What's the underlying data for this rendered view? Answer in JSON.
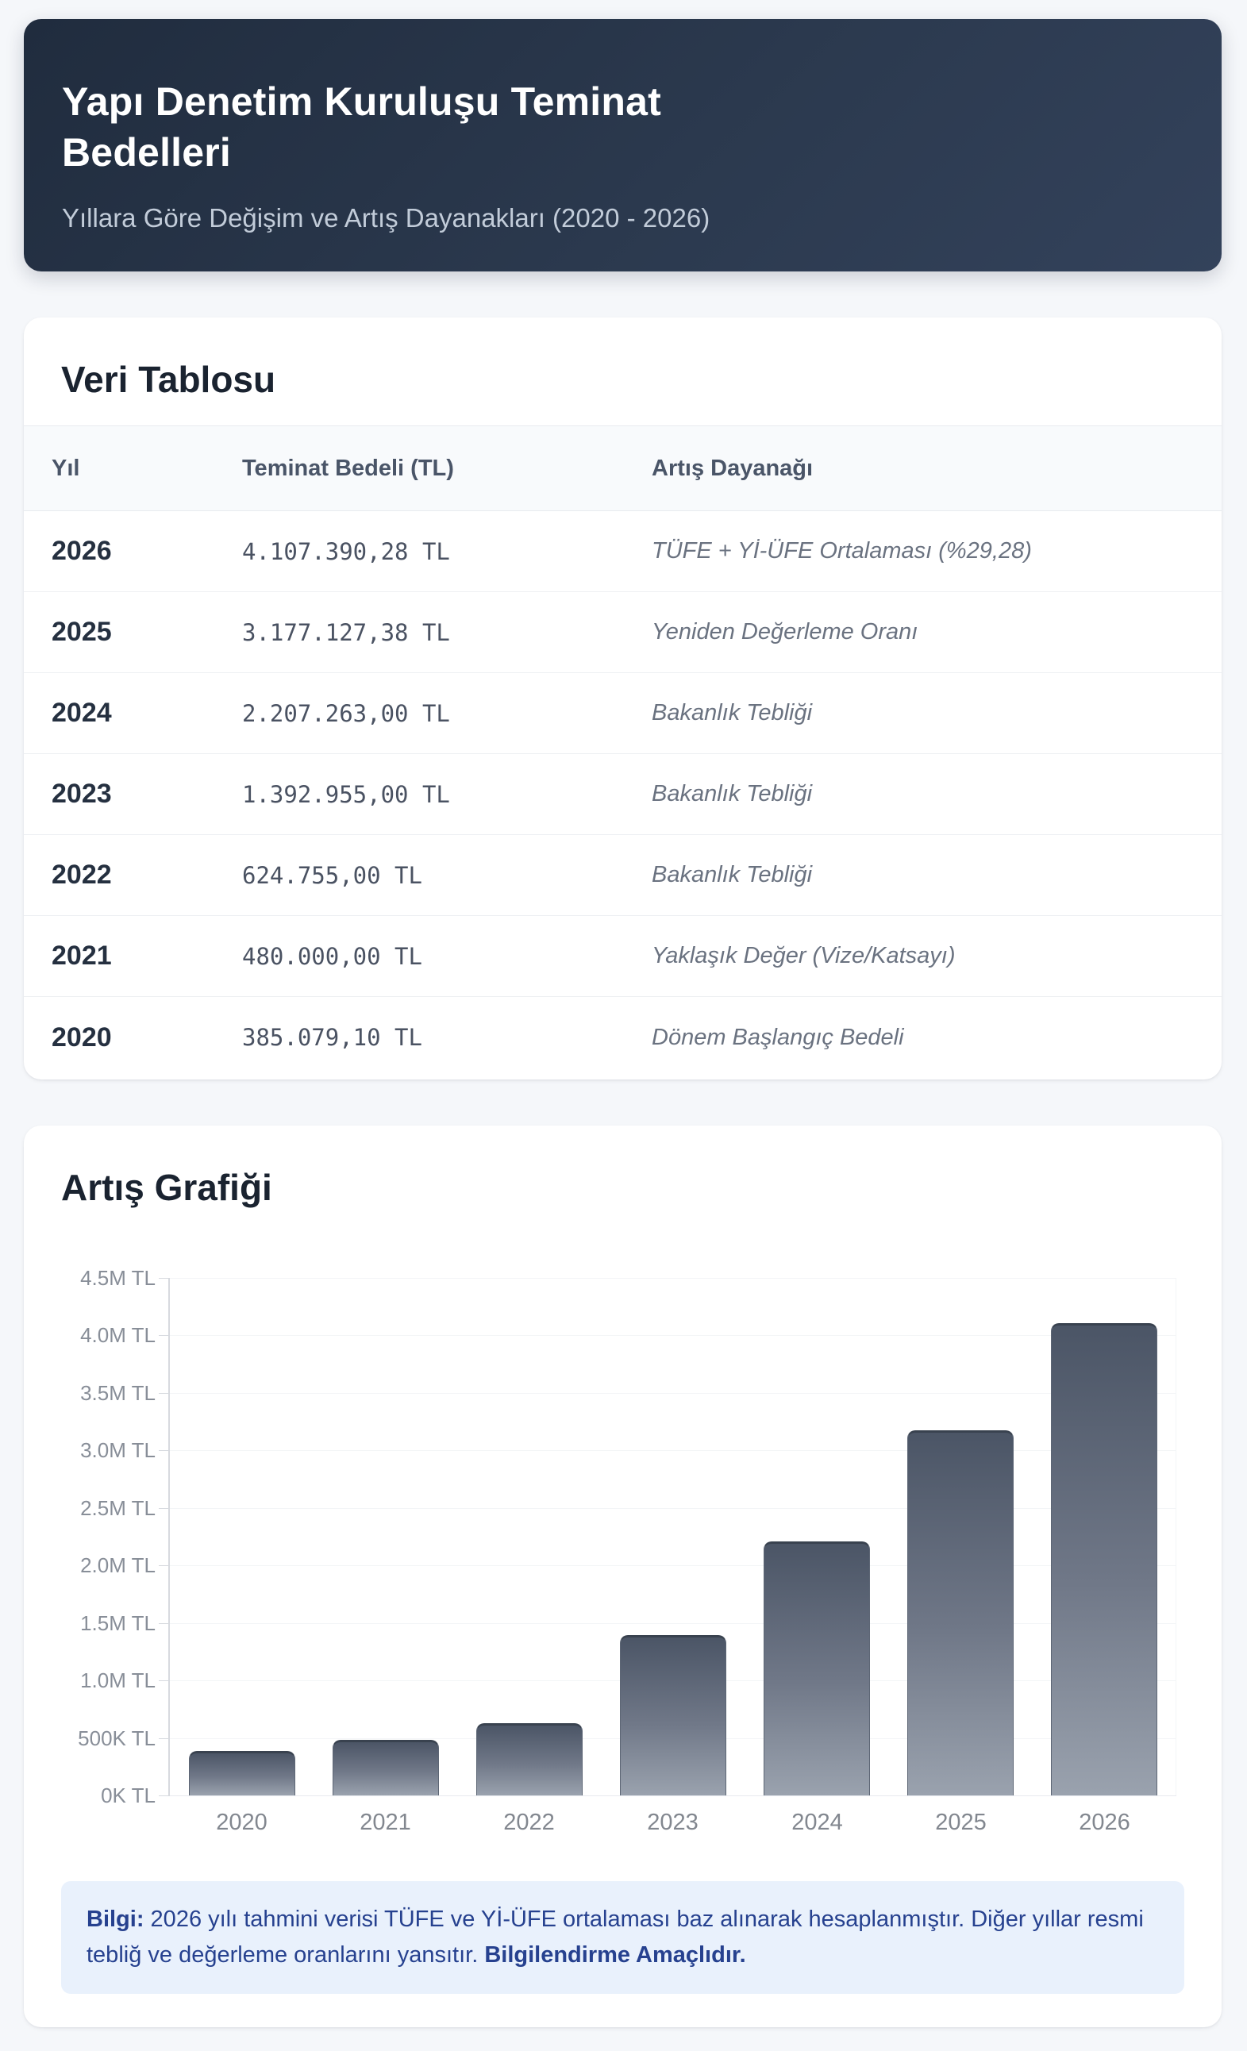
{
  "header": {
    "title": "Yapı Denetim Kuruluşu Teminat Bedelleri",
    "subtitle": "Yıllara Göre Değişim ve Artış Dayanakları (2020 - 2026)"
  },
  "table": {
    "section_title": "Veri Tablosu",
    "columns": [
      "Yıl",
      "Teminat Bedeli (TL)",
      "Artış Dayanağı"
    ],
    "rows": [
      {
        "year": "2026",
        "amount": "4.107.390,28 TL",
        "basis": "TÜFE + Yİ-ÜFE Ortalaması (%29,28)"
      },
      {
        "year": "2025",
        "amount": "3.177.127,38 TL",
        "basis": "Yeniden Değerleme Oranı"
      },
      {
        "year": "2024",
        "amount": "2.207.263,00 TL",
        "basis": "Bakanlık Tebliği"
      },
      {
        "year": "2023",
        "amount": "1.392.955,00 TL",
        "basis": "Bakanlık Tebliği"
      },
      {
        "year": "2022",
        "amount": "624.755,00 TL",
        "basis": "Bakanlık Tebliği"
      },
      {
        "year": "2021",
        "amount": "480.000,00 TL",
        "basis": "Yaklaşık Değer (Vize/Katsayı)"
      },
      {
        "year": "2020",
        "amount": "385.079,10 TL",
        "basis": "Dönem Başlangıç Bedeli"
      }
    ]
  },
  "chart": {
    "section_title": "Artış Grafiği"
  },
  "chart_data": {
    "type": "bar",
    "title": "Artış Grafiği",
    "categories": [
      "2020",
      "2021",
      "2022",
      "2023",
      "2024",
      "2025",
      "2026"
    ],
    "values": [
      385079.1,
      480000.0,
      624755.0,
      1392955.0,
      2207263.0,
      3177127.38,
      4107390.28
    ],
    "y_tick_labels": [
      "0K TL",
      "500K TL",
      "1.0M TL",
      "1.5M TL",
      "2.0M TL",
      "2.5M TL",
      "3.0M TL",
      "3.5M TL",
      "4.0M TL",
      "4.5M TL"
    ],
    "ylim": [
      0,
      4500000
    ],
    "xlabel": "",
    "ylabel": "",
    "grid": true,
    "legend": "none",
    "bar_color_top": "#4b5566",
    "bar_color_bottom": "#9aa2ae"
  },
  "info": {
    "label": "Bilgi:",
    "body": " 2026 yılı tahmini verisi TÜFE ve Yİ-ÜFE ortalaması baz alınarak hesaplanmıştır. Diğer yıllar resmi tebliğ ve değerleme oranlarını yansıtır. ",
    "tail": "Bilgilendirme Amaçlıdır."
  }
}
